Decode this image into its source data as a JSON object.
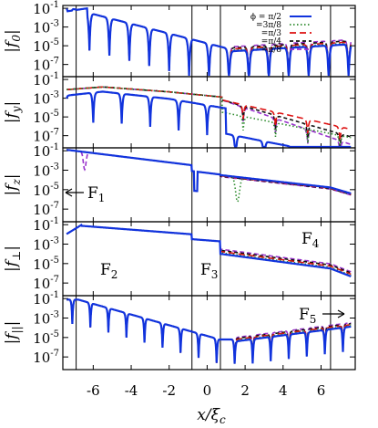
{
  "chart_data": [
    {
      "type": "line",
      "ylabel_main": "|f",
      "ylabel_sub": "0",
      "ylabel_tail": "|",
      "yticks": [
        {
          "base": "10",
          "exp": "-1"
        },
        {
          "base": "10",
          "exp": "-3"
        },
        {
          "base": "10",
          "exp": "-5"
        },
        {
          "base": "10",
          "exp": "-7"
        }
      ],
      "yticks_log": [
        -1,
        -3,
        -5,
        -7
      ],
      "ylim_log": [
        -8.3,
        -0.7
      ],
      "legend_title": "ϕ = π/2",
      "legend": [
        "=3π/8",
        "=π/3",
        "=π/4",
        "=π/8"
      ],
      "legend_placement": "top-right",
      "series": []
    },
    {
      "type": "line",
      "ylabel_main": "|f",
      "ylabel_sub": "y",
      "ylabel_tail": "|",
      "yticks": [
        {
          "base": "10",
          "exp": "-1"
        },
        {
          "base": "10",
          "exp": "-3"
        },
        {
          "base": "10",
          "exp": "-5"
        },
        {
          "base": "10",
          "exp": "-7"
        }
      ],
      "yticks_log": [
        -1,
        -3,
        -5,
        -7
      ],
      "ylim_log": [
        -8.3,
        -0.7
      ],
      "series": []
    },
    {
      "type": "line",
      "ylabel_main": "|f",
      "ylabel_sub": "z",
      "ylabel_tail": "|",
      "yticks": [
        {
          "base": "10",
          "exp": "-1"
        },
        {
          "base": "10",
          "exp": "-3"
        },
        {
          "base": "10",
          "exp": "-5"
        },
        {
          "base": "10",
          "exp": "-7"
        }
      ],
      "yticks_log": [
        -1,
        -3,
        -5,
        -7
      ],
      "ylim_log": [
        -8.3,
        -0.7
      ],
      "annotations": [
        {
          "text": "F",
          "sub": "1",
          "arrow": "left"
        }
      ],
      "series": []
    },
    {
      "type": "line",
      "ylabel_main": "|f",
      "ylabel_sub": "⊥",
      "ylabel_tail": "|",
      "yticks": [
        {
          "base": "10",
          "exp": "-1"
        },
        {
          "base": "10",
          "exp": "-3"
        },
        {
          "base": "10",
          "exp": "-5"
        },
        {
          "base": "10",
          "exp": "-7"
        }
      ],
      "yticks_log": [
        -1,
        -3,
        -5,
        -7
      ],
      "ylim_log": [
        -8.3,
        -0.7
      ],
      "annotations": [
        {
          "text": "F",
          "sub": "2"
        },
        {
          "text": "F",
          "sub": "3"
        },
        {
          "text": "F",
          "sub": "4"
        }
      ],
      "series": []
    },
    {
      "type": "line",
      "ylabel_main": "|f",
      "ylabel_sub": "||",
      "ylabel_tail": "|",
      "yticks": [
        {
          "base": "10",
          "exp": "-1"
        },
        {
          "base": "10",
          "exp": "-3"
        },
        {
          "base": "10",
          "exp": "-5"
        },
        {
          "base": "10",
          "exp": "-7"
        }
      ],
      "yticks_log": [
        -1,
        -3,
        -5,
        -7
      ],
      "ylim_log": [
        -8.3,
        -0.7
      ],
      "annotations": [
        {
          "text": "F",
          "sub": "5",
          "arrow": "right"
        }
      ],
      "series": []
    }
  ],
  "x_axis": {
    "label_main": "x/ξ",
    "label_sub": "c",
    "ticks": [
      -6,
      -4,
      -2,
      0,
      2,
      4,
      6
    ],
    "tick_labels": [
      "-6",
      "-4",
      "-2",
      "0",
      "2",
      "4",
      "6"
    ],
    "xlim": [
      -7.6,
      7.8
    ],
    "vlines": [
      -6.9,
      -0.8,
      0.7,
      6.5
    ]
  },
  "series_styles": [
    {
      "color": "#1133dd",
      "dash": ""
    },
    {
      "color": "#2e8b2e",
      "dash": "1.5,2.5"
    },
    {
      "color": "#dd1111",
      "dash": "7,4"
    },
    {
      "color": "#111111",
      "dash": "4,3"
    },
    {
      "color": "#9933cc",
      "dash": "5,3"
    }
  ]
}
